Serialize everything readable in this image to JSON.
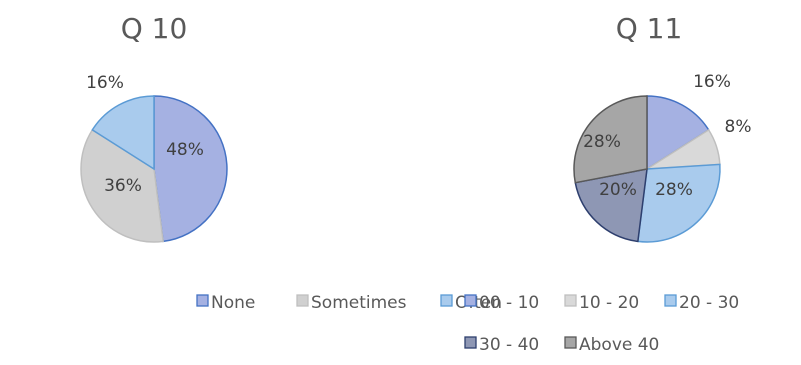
{
  "chart_data": [
    {
      "type": "pie",
      "title": "Q 10",
      "categories": [
        "None",
        "Sometimes",
        "Often"
      ],
      "values": [
        48,
        36,
        16
      ],
      "labels": [
        "48%",
        "36%",
        "16%"
      ],
      "colors": [
        "#a5b1e2",
        "#d0d0d0",
        "#a9cbed"
      ],
      "edge_colors": [
        "#4472c4",
        "#bfbfbf",
        "#5b9bd5"
      ],
      "legend_position": "bottom"
    },
    {
      "type": "pie",
      "title": "Q 11",
      "categories": [
        "00 - 10",
        "10 - 20",
        "20 - 30",
        "30 - 40",
        "Above 40"
      ],
      "values": [
        16,
        8,
        28,
        20,
        28
      ],
      "labels": [
        "16%",
        "8%",
        "28%",
        "20%",
        "28%"
      ],
      "colors": [
        "#a5b1e2",
        "#d9d9d9",
        "#a9cbed",
        "#8e97b4",
        "#a6a6a6"
      ],
      "edge_colors": [
        "#4472c4",
        "#bfbfbf",
        "#5b9bd5",
        "#2e3f6e",
        "#595959"
      ],
      "legend_position": "bottom"
    }
  ]
}
